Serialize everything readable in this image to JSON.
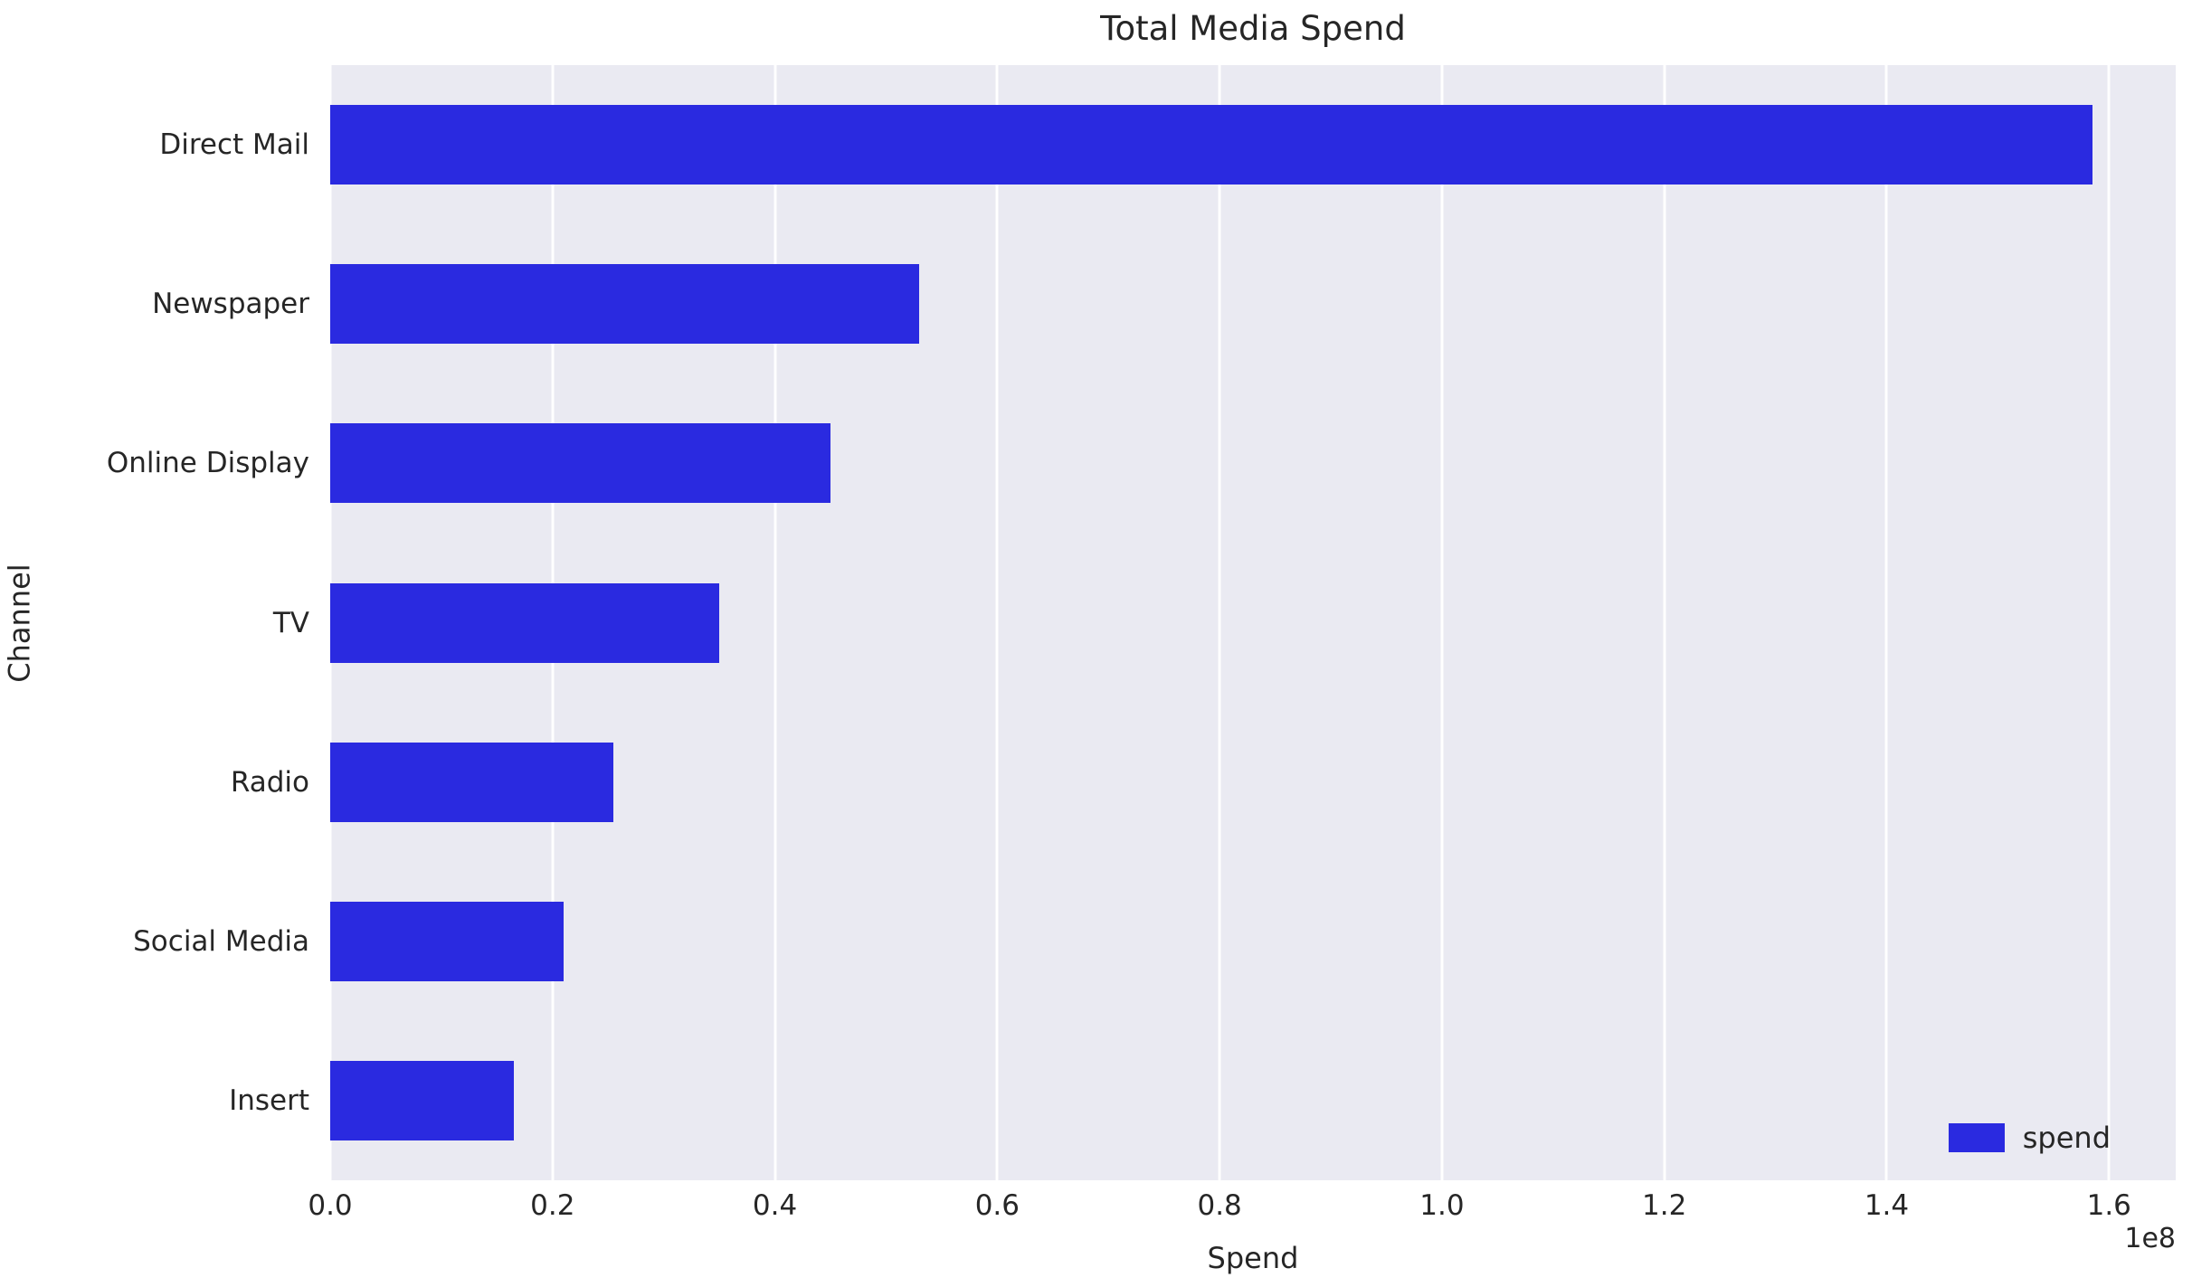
{
  "chart_data": {
    "type": "bar",
    "orientation": "horizontal",
    "title": "Total Media Spend",
    "xlabel": "Spend",
    "ylabel": "Channel",
    "categories": [
      "Direct Mail",
      "Newspaper",
      "Online Display",
      "TV",
      "Radio",
      "Social Media",
      "Insert"
    ],
    "series": [
      {
        "name": "spend",
        "values": [
          158500000,
          53000000,
          45000000,
          35000000,
          25500000,
          21000000,
          16500000
        ]
      }
    ],
    "xlim": [
      0,
      166000000
    ],
    "x_ticks": [
      0,
      20000000,
      40000000,
      60000000,
      80000000,
      100000000,
      120000000,
      140000000,
      160000000
    ],
    "x_tick_labels": [
      "0.0",
      "0.2",
      "0.4",
      "0.6",
      "0.8",
      "1.0",
      "1.2",
      "1.4",
      "1.6"
    ],
    "offset_text": "1e8",
    "grid": true,
    "bar_width_fraction": 0.5,
    "legend": {
      "position": "lower right",
      "entries": [
        {
          "label": "spend",
          "color": "#2a2ae0"
        }
      ]
    },
    "colors": {
      "bar": "#2a2ae0",
      "plot_bg": "#eaeaf2",
      "grid": "#ffffff",
      "text": "#262626"
    }
  }
}
